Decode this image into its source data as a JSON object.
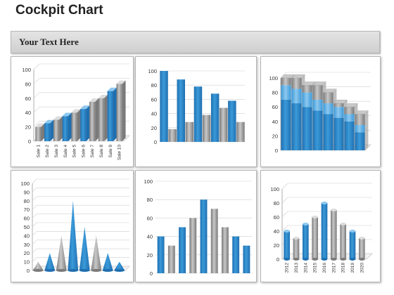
{
  "header": {
    "title": "Cockpit Chart",
    "banner_text": "Your Text Here"
  },
  "colors": {
    "blue_dark": "#1f6fb0",
    "blue_mid": "#3b9ad9",
    "blue_light": "#8ec8ef",
    "grey_dark": "#7a7a7a",
    "grey_mid": "#a3a3a3",
    "grey_light": "#c8c8c8"
  },
  "chart_data": [
    {
      "type": "bar",
      "title": "",
      "categories": [
        "Sale 1",
        "Sale 2",
        "Sale 3",
        "Sale 4",
        "Sale 5",
        "Sale 6",
        "Sale 7",
        "Sale 8",
        "Sale 9",
        "Sale 10"
      ],
      "values": [
        20,
        25,
        30,
        35,
        40,
        45,
        55,
        60,
        70,
        80
      ],
      "colors": [
        "grey",
        "blue",
        "grey",
        "blue",
        "grey",
        "blue",
        "grey",
        "grey",
        "blue",
        "grey"
      ],
      "ylim": [
        0,
        100
      ],
      "yticks": [
        0,
        20,
        40,
        60,
        80,
        100
      ],
      "grid": true
    },
    {
      "type": "bar",
      "title": "",
      "values": [
        100,
        18,
        88,
        28,
        78,
        38,
        68,
        48,
        58,
        28
      ],
      "colors": [
        "blue",
        "grey",
        "blue",
        "grey",
        "blue",
        "grey",
        "blue",
        "grey",
        "blue",
        "grey"
      ],
      "ylim": [
        0,
        100
      ],
      "yticks": [
        0,
        20,
        40,
        60,
        80,
        100
      ],
      "grid": true
    },
    {
      "type": "bar",
      "title": "",
      "stacked": true,
      "series": [
        {
          "values": [
            70,
            65,
            60,
            55,
            50,
            45,
            40,
            25
          ]
        },
        {
          "values": [
            20,
            20,
            20,
            15,
            15,
            15,
            10,
            10
          ]
        },
        {
          "values": [
            10,
            15,
            10,
            20,
            15,
            5,
            10,
            15
          ]
        }
      ],
      "ylim": [
        0,
        100
      ],
      "yticks": [
        0,
        20,
        40,
        60,
        80,
        100
      ],
      "grid": true
    },
    {
      "type": "bar",
      "title": "",
      "shape": "cone",
      "values": [
        10,
        20,
        40,
        80,
        50,
        40,
        20,
        10
      ],
      "colors": [
        "grey",
        "blue",
        "grey",
        "blue",
        "blue",
        "grey",
        "blue",
        "blue"
      ],
      "ylim": [
        0,
        100
      ],
      "yticks": [
        0,
        10,
        20,
        30,
        40,
        50,
        60,
        70,
        80,
        90,
        100
      ],
      "grid": true
    },
    {
      "type": "bar",
      "title": "",
      "values": [
        40,
        30,
        50,
        60,
        80,
        70,
        50,
        40,
        30
      ],
      "colors": [
        "blue",
        "grey",
        "blue",
        "grey",
        "blue",
        "grey",
        "grey",
        "blue",
        "blue"
      ],
      "ylim": [
        0,
        100
      ],
      "yticks": [
        0,
        20,
        40,
        60,
        80,
        100
      ],
      "grid": true
    },
    {
      "type": "bar",
      "title": "",
      "shape": "cylinder",
      "categories": [
        "2012",
        "2013",
        "2014",
        "2015",
        "2016",
        "2017",
        "2018",
        "2019",
        "2020"
      ],
      "values": [
        40,
        30,
        50,
        60,
        80,
        70,
        50,
        40,
        30
      ],
      "colors": [
        "blue",
        "grey",
        "blue",
        "grey",
        "blue",
        "grey",
        "grey",
        "blue",
        "grey"
      ],
      "ylim": [
        0,
        100
      ],
      "yticks": [
        0,
        20,
        40,
        60,
        80,
        100
      ],
      "grid": true
    }
  ]
}
